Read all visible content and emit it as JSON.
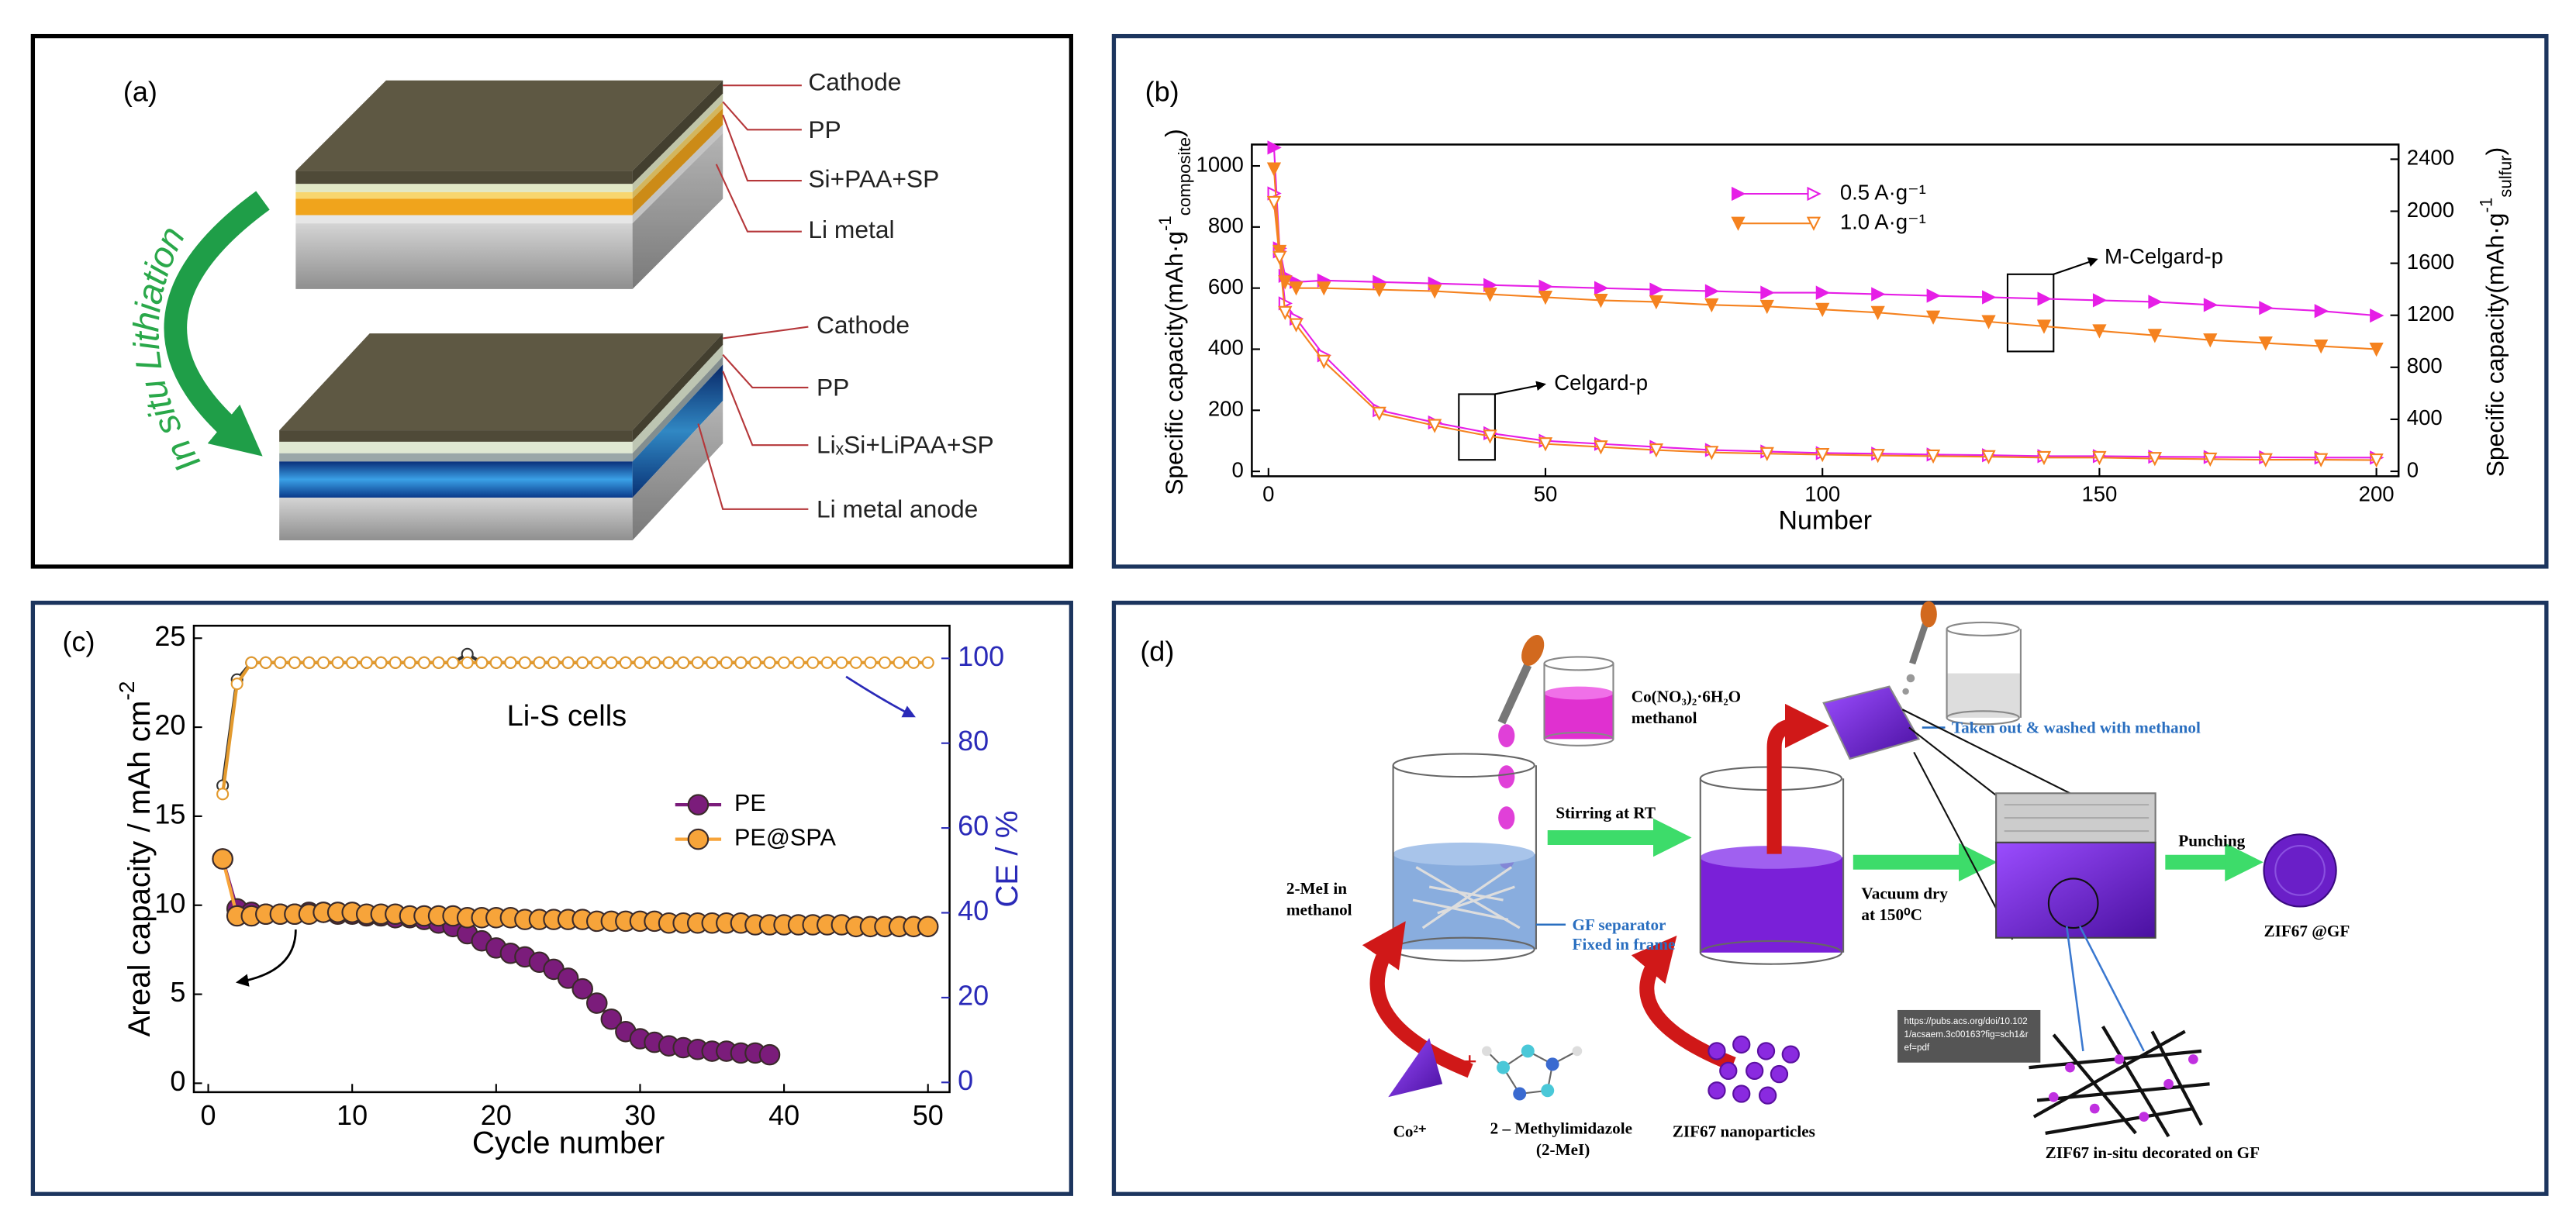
{
  "chart_data": [
    {
      "type": "line",
      "panel_label": "(b)",
      "x_label": "Number",
      "y_label": {
        "text": "Specific capacity(mAh·g",
        "sup": "-1",
        "sub": "composite",
        "end": ")"
      },
      "y2_label": {
        "text": "Specific capacity(mAh·g",
        "sup": "-1",
        "sub": "sulfur",
        "end": ")"
      },
      "xlim": [
        -3,
        204
      ],
      "xticks": [
        0,
        50,
        100,
        150,
        200
      ],
      "ylim": [
        -16,
        1070
      ],
      "yticks": [
        0,
        200,
        400,
        600,
        800,
        1000
      ],
      "y2lim": [
        -38,
        2513
      ],
      "y2ticks": [
        0,
        400,
        800,
        1200,
        1600,
        2000,
        2400
      ],
      "x": [
        1,
        2,
        3,
        5,
        10,
        20,
        30,
        40,
        50,
        60,
        70,
        80,
        90,
        100,
        110,
        120,
        130,
        140,
        150,
        160,
        170,
        180,
        190,
        200
      ],
      "series": [
        {
          "name": "0.5 A·g⁻¹",
          "color": "#e61ee6",
          "marker": "triangle-right",
          "line": true,
          "values": [
            1060,
            730,
            640,
            620,
            625,
            620,
            615,
            610,
            605,
            600,
            595,
            590,
            585,
            585,
            580,
            575,
            570,
            565,
            560,
            555,
            545,
            535,
            525,
            510
          ],
          "values_open": [
            910,
            720,
            550,
            500,
            380,
            200,
            160,
            125,
            100,
            90,
            80,
            70,
            65,
            60,
            58,
            55,
            53,
            50,
            50,
            48,
            47,
            46,
            45,
            45
          ]
        },
        {
          "name": "1.0 A·g⁻¹",
          "color": "#f5821f",
          "marker": "triangle-down",
          "line": true,
          "values": [
            990,
            720,
            620,
            600,
            600,
            595,
            590,
            580,
            570,
            560,
            555,
            545,
            540,
            530,
            520,
            505,
            490,
            475,
            460,
            445,
            430,
            420,
            410,
            400
          ],
          "values_open": [
            880,
            700,
            520,
            480,
            360,
            190,
            150,
            115,
            90,
            80,
            70,
            62,
            58,
            55,
            52,
            50,
            48,
            45,
            45,
            42,
            40,
            38,
            38,
            37
          ]
        }
      ],
      "annotations": [
        "M-Celgard-p",
        "Celgard-p"
      ]
    },
    {
      "type": "line",
      "panel_label": "(c)",
      "x_label": "Cycle number",
      "y_label": {
        "text": "Areal capacity / mAh cm",
        "sup": "-2"
      },
      "y2_label": {
        "text": "CE / %"
      },
      "y2_color": "#2a2ab8",
      "xlim": [
        -1,
        51.5
      ],
      "xticks": [
        0,
        10,
        20,
        30,
        40,
        50
      ],
      "ylim": [
        -0.5,
        25.7
      ],
      "yticks": [
        0,
        5,
        10,
        15,
        20,
        25
      ],
      "y2lim": [
        -2.3,
        107.7
      ],
      "y2ticks": [
        0,
        20,
        40,
        60,
        80,
        100
      ],
      "x": [
        1,
        2,
        3,
        4,
        5,
        6,
        7,
        8,
        9,
        10,
        11,
        12,
        13,
        14,
        15,
        16,
        17,
        18,
        19,
        20,
        21,
        22,
        23,
        24,
        25,
        26,
        27,
        28,
        29,
        30,
        31,
        32,
        33,
        34,
        35,
        36,
        37,
        38,
        39,
        40,
        41,
        42,
        43,
        44,
        45,
        46,
        47,
        48,
        49,
        50
      ],
      "series": [
        {
          "name": "PE",
          "color": "#7b1c7b",
          "marker": "circle",
          "line": true,
          "values": [
            12.6,
            9.8,
            9.6,
            9.5,
            9.5,
            9.5,
            9.6,
            9.6,
            9.5,
            9.5,
            9.4,
            9.4,
            9.3,
            9.3,
            9.2,
            9.0,
            8.8,
            8.4,
            8.0,
            7.6,
            7.3,
            7.1,
            6.8,
            6.4,
            5.9,
            5.3,
            4.5,
            3.6,
            2.9,
            2.5,
            2.3,
            2.1,
            2.0,
            1.9,
            1.8,
            1.8,
            1.7,
            1.7,
            1.6,
            null,
            null,
            null,
            null,
            null,
            null,
            null,
            null,
            null,
            null,
            null
          ]
        },
        {
          "name": "PE@SPA",
          "color": "#f7a43a",
          "marker": "circle",
          "line": true,
          "values": [
            12.6,
            9.4,
            9.4,
            9.5,
            9.5,
            9.5,
            9.5,
            9.6,
            9.6,
            9.6,
            9.5,
            9.5,
            9.5,
            9.4,
            9.4,
            9.4,
            9.4,
            9.3,
            9.3,
            9.3,
            9.3,
            9.2,
            9.2,
            9.2,
            9.2,
            9.2,
            9.1,
            9.1,
            9.1,
            9.1,
            9.1,
            9.0,
            9.0,
            9.0,
            9.0,
            9.0,
            9.0,
            8.9,
            8.9,
            8.9,
            8.9,
            8.9,
            8.9,
            8.9,
            8.8,
            8.8,
            8.8,
            8.8,
            8.8,
            8.8
          ]
        },
        {
          "axis": "y2",
          "color": "#333333",
          "marker": "circle-open",
          "line": true,
          "values": [
            70,
            95,
            99,
            99,
            99,
            99,
            99,
            99,
            99,
            99,
            99,
            99,
            99,
            99,
            99,
            99,
            99,
            101,
            99,
            99,
            99,
            99,
            99,
            99,
            99,
            99,
            99,
            99,
            99,
            99,
            99,
            99,
            99,
            99,
            99,
            99,
            99,
            99,
            99,
            null,
            null,
            null,
            null,
            null,
            null,
            null,
            null,
            null,
            null,
            null
          ]
        },
        {
          "axis": "y2",
          "color": "#e39a2e",
          "marker": "circle-open",
          "line": true,
          "values": [
            68,
            94,
            99,
            99,
            99,
            99,
            99,
            99,
            99,
            99,
            99,
            99,
            99,
            99,
            99,
            99,
            99,
            99,
            99,
            99,
            99,
            99,
            99,
            99,
            99,
            99,
            99,
            99,
            99,
            99,
            99,
            99,
            99,
            99,
            99,
            99,
            99,
            99,
            99,
            99,
            99,
            99,
            99,
            99,
            99,
            99,
            99,
            99,
            99,
            99
          ]
        }
      ],
      "annotations": [
        "Li-S cells"
      ]
    }
  ],
  "panel_a": {
    "label": "(a)",
    "arrow_text": "In situ Lithiation",
    "top_layers": [
      "Cathode",
      "PP",
      "Si+PAA+SP",
      "Li metal"
    ],
    "bottom_layers": [
      "Cathode",
      "PP",
      "LiₓSi+LiPAA+SP",
      "Li metal anode"
    ]
  },
  "panel_d": {
    "label": "(d)",
    "reagent": "Co(NO₃)₂·6H₂O",
    "reagent_solvent": "methanol",
    "wash": "Taken out & washed with methanol",
    "step1": "Stirring at RT",
    "mei_solution": [
      "2-MeI in",
      "methanol"
    ],
    "separator": [
      "GF separator",
      "Fixed in frame"
    ],
    "step2": [
      "Vacuum dry",
      "at 150⁰C"
    ],
    "step3": "Punching",
    "product": "ZIF67 @GF",
    "cobalt": "Co²⁺",
    "plus": "+",
    "ligand": [
      "2 – Methylimidazole",
      "(2-MeI)"
    ],
    "nanoparticles": "ZIF67 nanoparticles",
    "decorated": "ZIF67 in-situ decorated on GF",
    "source_url": [
      "https://pubs.acs.org/doi/10.102",
      "1/acsaem.3c00163?fig=sch1&r",
      "ef=pdf"
    ]
  }
}
